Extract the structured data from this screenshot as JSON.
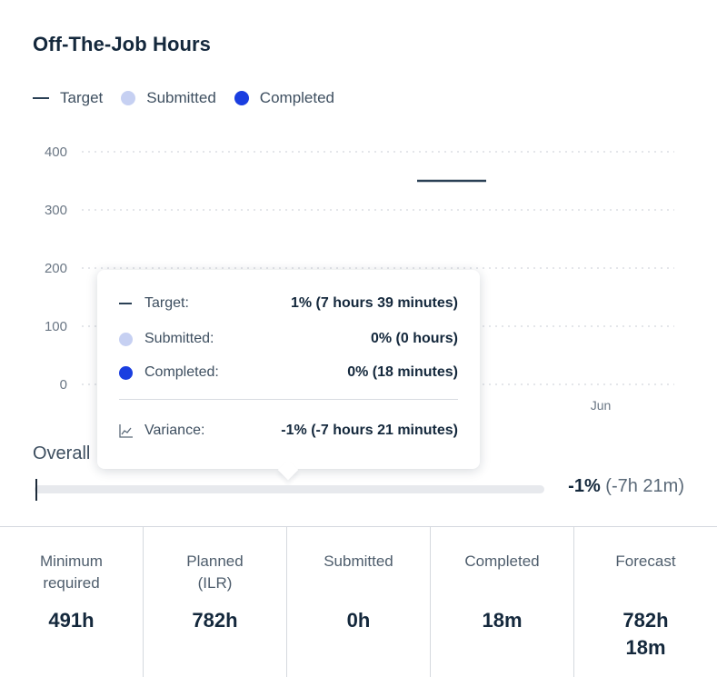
{
  "title": "Off-The-Job Hours",
  "legend": {
    "target": "Target",
    "submitted": "Submitted",
    "completed": "Completed"
  },
  "colors": {
    "target": "#2a4055",
    "submitted": "#c6d0f2",
    "completed": "#1a3ee0",
    "track": "#e7e9ed"
  },
  "chart_data": {
    "type": "bar",
    "y_ticks": [
      "400",
      "300",
      "200",
      "100",
      "0"
    ],
    "ylim": [
      0,
      400
    ],
    "x_labels": [
      "Jun"
    ],
    "grid": true,
    "series": [
      {
        "name": "Target",
        "points": [
          {
            "x": "Jun",
            "y": 350
          }
        ]
      },
      {
        "name": "Submitted",
        "points": []
      },
      {
        "name": "Completed",
        "points": []
      }
    ]
  },
  "tooltip": {
    "target_label": "Target:",
    "target_value": "1% (7 hours 39 minutes)",
    "submitted_label": "Submitted:",
    "submitted_value": "0% (0 hours)",
    "completed_label": "Completed:",
    "completed_value": "0% (18 minutes)",
    "variance_label": "Variance:",
    "variance_value": "-1% (-7 hours 21 minutes)",
    "variance_icon": "trend-chart-icon"
  },
  "overall": {
    "label": "Overall",
    "progress_fraction": 0.0,
    "variance_pct": "-1%",
    "variance_time": "(-7h 21m)"
  },
  "stats": [
    {
      "label_line1": "Minimum",
      "label_line2": "required",
      "value_line1": "491h",
      "value_line2": ""
    },
    {
      "label_line1": "Planned",
      "label_line2": "(ILR)",
      "value_line1": "782h",
      "value_line2": ""
    },
    {
      "label_line1": "Submitted",
      "label_line2": "",
      "value_line1": "0h",
      "value_line2": ""
    },
    {
      "label_line1": "Completed",
      "label_line2": "",
      "value_line1": "18m",
      "value_line2": ""
    },
    {
      "label_line1": "Forecast",
      "label_line2": "",
      "value_line1": "782h",
      "value_line2": "18m"
    }
  ]
}
